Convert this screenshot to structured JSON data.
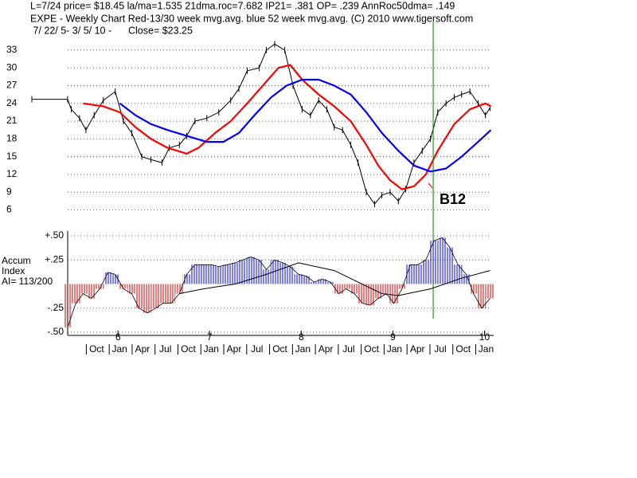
{
  "header": [
    "L=7/24  price= $18.45  la/ma=1.535 21dma.roc=7.682 IP21= .381 OP= .239 AnnRoc50dma= .149",
    "EXPE  - Weekly Chart  Red-13/30 week mvg.avg.  blue 52 week mvg.avg.  (C) 2010 www.tigersoft.com",
    " 7/ 22/ 5- 3/ 5/ 10 -      Close= $23.25"
  ],
  "chart_data": [
    {
      "type": "line",
      "xlim": [
        2005.06,
        2010.1
      ],
      "ylim": [
        5,
        35
      ],
      "yticks": [
        6,
        9,
        12,
        15,
        18,
        21,
        24,
        27,
        30,
        33
      ],
      "grid": true,
      "grid_color": "#00a000",
      "marker_x": 2009.44,
      "marker_color": "#008000",
      "annotations": [
        {
          "text": "B12",
          "x": 2009.44
        }
      ],
      "series": [
        {
          "color": "#000000",
          "x": [
            2005.06,
            2005.45,
            2005.49,
            2005.58,
            2005.65,
            2005.74,
            2005.84,
            2005.97,
            2006.06,
            2006.15,
            2006.26,
            2006.36,
            2006.48,
            2006.56,
            2006.67,
            2006.75,
            2006.84,
            2006.97,
            2007.1,
            2007.23,
            2007.32,
            2007.41,
            2007.54,
            2007.62,
            2007.71,
            2007.82,
            2007.91,
            2008.01,
            2008.1,
            2008.19,
            2008.28,
            2008.36,
            2008.45,
            2008.54,
            2008.62,
            2008.71,
            2008.8,
            2008.88,
            2008.97,
            2009.06,
            2009.14,
            2009.23,
            2009.32,
            2009.41,
            2009.49,
            2009.58,
            2009.67,
            2009.75,
            2009.84,
            2009.93,
            2010.01,
            2010.06
          ],
          "values": [
            24.7,
            24.7,
            23,
            21.5,
            19.5,
            22,
            24.5,
            26,
            21,
            19,
            15,
            14.5,
            14,
            16.5,
            17,
            18.5,
            21,
            21.5,
            22.5,
            24.5,
            26.5,
            29.5,
            30,
            33,
            34,
            33,
            27,
            23,
            22,
            24.5,
            23,
            20,
            19.5,
            17,
            14,
            9,
            7,
            8.5,
            9,
            7.5,
            9.5,
            14,
            16,
            18,
            22.5,
            24,
            25,
            25.5,
            26,
            24,
            22,
            23.25
          ]
        },
        {
          "color": "#ff0000",
          "x": [
            2005.62,
            2005.84,
            2006.02,
            2006.19,
            2006.36,
            2006.54,
            2006.75,
            2006.88,
            2007.06,
            2007.23,
            2007.41,
            2007.58,
            2007.75,
            2007.88,
            2008.01,
            2008.19,
            2008.36,
            2008.54,
            2008.71,
            2008.84,
            2008.97,
            2009.1,
            2009.23,
            2009.36,
            2009.49,
            2009.67,
            2009.84,
            2010.01,
            2010.07
          ],
          "values": [
            24,
            23.5,
            22.5,
            20,
            18,
            16.5,
            15.5,
            16.5,
            19,
            21,
            24,
            27,
            30,
            30.5,
            28,
            25.5,
            23.5,
            21,
            17,
            13.5,
            11,
            9.5,
            10,
            12,
            16,
            20.5,
            23,
            24,
            23.5
          ]
        },
        {
          "color": "#0000ff",
          "x": [
            2006.02,
            2006.19,
            2006.36,
            2006.54,
            2006.75,
            2006.97,
            2007.15,
            2007.32,
            2007.49,
            2007.67,
            2007.84,
            2008.01,
            2008.19,
            2008.36,
            2008.54,
            2008.71,
            2008.88,
            2009.06,
            2009.23,
            2009.41,
            2009.58,
            2009.75,
            2009.93,
            2010.07
          ],
          "values": [
            24,
            22,
            20.5,
            19.5,
            18.5,
            17.5,
            17.5,
            19,
            22,
            25,
            27,
            28,
            28,
            27,
            25.5,
            22.5,
            19,
            16,
            13.5,
            12.5,
            13,
            15,
            17.5,
            19.5
          ]
        }
      ]
    },
    {
      "type": "bar",
      "label_lines": [
        "Accum",
        "Index",
        "AI= 113/200"
      ],
      "xlim": [
        2005.06,
        2010.1
      ],
      "ylim": [
        -0.5,
        0.5
      ],
      "yticks": [
        {
          "value": -0.5,
          "label": "-.50"
        },
        {
          "value": -0.25,
          "label": "-.25"
        },
        {
          "value": 0.25,
          "label": "+.25"
        },
        {
          "value": 0.5,
          "label": "+.50"
        }
      ],
      "grid": true,
      "grid_color": "#00a000",
      "positive_color": "#0000cc",
      "negative_color": "#cc0000",
      "x": [
        2005.45,
        2005.54,
        2005.62,
        2005.71,
        2005.8,
        2005.89,
        2005.97,
        2006.06,
        2006.15,
        2006.23,
        2006.32,
        2006.41,
        2006.49,
        2006.58,
        2006.67,
        2006.75,
        2006.84,
        2006.93,
        2007.02,
        2007.1,
        2007.19,
        2007.28,
        2007.36,
        2007.45,
        2007.54,
        2007.62,
        2007.71,
        2007.8,
        2007.88,
        2007.97,
        2008.06,
        2008.14,
        2008.23,
        2008.32,
        2008.41,
        2008.49,
        2008.58,
        2008.67,
        2008.75,
        2008.84,
        2008.93,
        2009.01,
        2009.1,
        2009.19,
        2009.27,
        2009.36,
        2009.45,
        2009.54,
        2009.62,
        2009.71,
        2009.8,
        2009.88,
        2009.97,
        2010.06
      ],
      "values": [
        -0.45,
        -0.2,
        -0.1,
        -0.15,
        -0.05,
        0.12,
        0.1,
        -0.05,
        -0.1,
        -0.25,
        -0.3,
        -0.25,
        -0.2,
        -0.2,
        -0.1,
        0.1,
        0.2,
        0.2,
        0.2,
        0.18,
        0.2,
        0.22,
        0.25,
        0.28,
        0.25,
        0.15,
        0.25,
        0.22,
        0.18,
        0.1,
        0.08,
        0.02,
        0.05,
        0.02,
        -0.1,
        -0.05,
        -0.1,
        -0.2,
        -0.22,
        -0.15,
        -0.1,
        -0.2,
        -0.05,
        0.2,
        0.2,
        0.25,
        0.45,
        0.48,
        0.38,
        0.2,
        0.1,
        -0.1,
        -0.25,
        -0.15
      ],
      "line": {
        "color": "#000000",
        "x": [
          2006.67,
          2006.93,
          2007.28,
          2007.62,
          2007.97,
          2008.36,
          2008.88,
          2009.06,
          2009.41,
          2009.75,
          2010.06
        ],
        "values": [
          -0.1,
          -0.05,
          0.0,
          0.1,
          0.22,
          0.14,
          -0.1,
          -0.12,
          -0.05,
          0.06,
          0.14
        ]
      },
      "xticks": [
        {
          "value": 2006,
          "label": "6"
        },
        {
          "value": 2007,
          "label": "7"
        },
        {
          "value": 2008,
          "label": "8"
        },
        {
          "value": 2009,
          "label": "9"
        },
        {
          "value": 2010,
          "label": "10"
        }
      ],
      "month_ticks": [
        {
          "value": 2005.75,
          "label": "Oct"
        },
        {
          "value": 2006,
          "label": "Jan"
        },
        {
          "value": 2006.25,
          "label": "Apr"
        },
        {
          "value": 2006.5,
          "label": "Jul"
        },
        {
          "value": 2006.75,
          "label": "Oct"
        },
        {
          "value": 2007,
          "label": "Jan"
        },
        {
          "value": 2007.25,
          "label": "Apr"
        },
        {
          "value": 2007.5,
          "label": "Jul"
        },
        {
          "value": 2007.75,
          "label": "Oct"
        },
        {
          "value": 2008,
          "label": "Jan"
        },
        {
          "value": 2008.25,
          "label": "Apr"
        },
        {
          "value": 2008.5,
          "label": "Jul"
        },
        {
          "value": 2008.75,
          "label": "Oct"
        },
        {
          "value": 2009,
          "label": "Jan"
        },
        {
          "value": 2009.25,
          "label": "Apr"
        },
        {
          "value": 2009.5,
          "label": "Jul"
        },
        {
          "value": 2009.75,
          "label": "Oct"
        },
        {
          "value": 2010,
          "label": "Jan"
        }
      ]
    }
  ]
}
